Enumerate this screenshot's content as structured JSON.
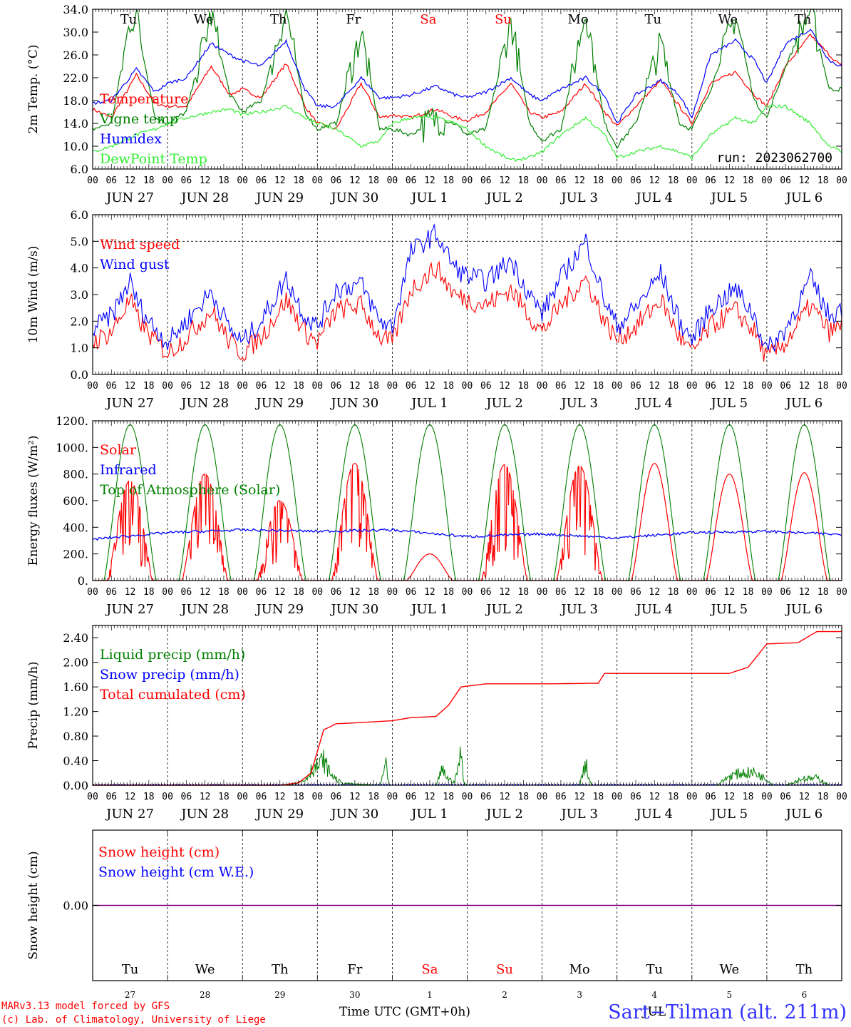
{
  "colors": {
    "red": "#ff0000",
    "green": "#008000",
    "blue": "#0000ff",
    "lightgreen": "#33ee33",
    "purple": "#800080",
    "axis": "#000000"
  },
  "days": {
    "names": [
      "Tu",
      "We",
      "Th",
      "Fr",
      "Sa",
      "Su",
      "Mo",
      "Tu",
      "We",
      "Th"
    ],
    "weekend": [
      false,
      false,
      false,
      false,
      true,
      true,
      false,
      false,
      false,
      false
    ],
    "dates": [
      "JUN 27",
      "JUN 28",
      "JUN 29",
      "JUN 30",
      "JUL  1",
      "JUL  2",
      "JUL  3",
      "JUL  4",
      "JUL  5",
      "JUL  6"
    ],
    "nums": [
      "27",
      "28",
      "29",
      "30",
      "1",
      "2",
      "3",
      "4",
      "5",
      "6"
    ],
    "hours": [
      "00",
      "06",
      "12",
      "18"
    ],
    "end_hour": "00"
  },
  "chart_data": [
    {
      "type": "line",
      "id": "temp",
      "ylabel": "2m Temp. (°C)",
      "ylim": [
        6,
        34
      ],
      "yticks": [
        "6.0",
        "10.0",
        "14.0",
        "18.0",
        "22.0",
        "26.0",
        "30.0",
        "34.0"
      ],
      "run_label": "run: 2023062700",
      "legend": [
        {
          "name": "Temperature",
          "color": "#ff0000"
        },
        {
          "name": "Vigne temp",
          "color": "#008000"
        },
        {
          "name": "Humidex",
          "color": "#0000ff"
        },
        {
          "name": "DewPoint Temp",
          "color": "#33ee33"
        }
      ],
      "series": [
        {
          "name": "Temperature",
          "color": "#ff0000",
          "x_hours": [
            0,
            6,
            14,
            20,
            24,
            30,
            38,
            44,
            48,
            54,
            62,
            68,
            72,
            78,
            86,
            92,
            96,
            102,
            110,
            116,
            120,
            126,
            134,
            140,
            144,
            150,
            158,
            164,
            168,
            174,
            182,
            188,
            192,
            198,
            206,
            212,
            216,
            222,
            230,
            236,
            240
          ],
          "values": [
            16.5,
            15,
            22.5,
            17.5,
            17,
            17,
            24,
            19,
            20,
            18.5,
            24.5,
            17,
            14,
            13,
            21,
            15,
            15.5,
            15,
            16.5,
            15,
            14.5,
            16,
            21,
            16,
            15,
            16,
            21,
            16,
            13.5,
            17,
            21.5,
            17,
            14,
            21,
            23,
            19,
            17,
            24,
            29.5,
            26,
            24
          ]
        },
        {
          "name": "Vigne temp",
          "color": "#008000",
          "x_hours": [
            0,
            6,
            12,
            14,
            20,
            24,
            30,
            38,
            44,
            48,
            54,
            62,
            68,
            72,
            78,
            86,
            92,
            96,
            102,
            110,
            116,
            120,
            126,
            134,
            140,
            144,
            150,
            158,
            164,
            168,
            174,
            182,
            188,
            192,
            198,
            206,
            212,
            216,
            222,
            230,
            236,
            240
          ],
          "values": [
            13,
            14,
            32,
            33,
            15,
            14,
            16,
            33,
            19,
            16,
            18,
            34,
            16,
            13,
            14,
            30,
            13,
            13,
            12,
            15,
            14,
            12,
            13,
            32,
            14,
            11,
            13,
            34,
            14,
            10,
            14,
            28,
            14,
            13,
            20,
            33,
            18,
            15,
            24,
            34,
            20,
            20
          ]
        },
        {
          "name": "Humidex",
          "color": "#0000ff",
          "x_hours": [
            0,
            6,
            14,
            20,
            24,
            30,
            38,
            44,
            48,
            54,
            62,
            68,
            72,
            78,
            86,
            92,
            96,
            102,
            110,
            116,
            120,
            126,
            134,
            140,
            144,
            150,
            158,
            164,
            168,
            174,
            182,
            188,
            192,
            198,
            206,
            212,
            216,
            222,
            230,
            236,
            240
          ],
          "values": [
            17.5,
            18,
            23.5,
            19.5,
            21,
            22,
            28,
            26,
            25,
            24,
            28.5,
            20,
            17,
            17,
            22,
            18.5,
            18.5,
            19,
            20.5,
            19,
            18.5,
            19.5,
            22,
            19,
            18,
            20,
            22,
            19,
            14,
            19,
            21.5,
            19,
            15,
            26,
            28.5,
            25,
            21,
            28,
            30.5,
            25,
            24
          ]
        },
        {
          "name": "DewPoint Temp",
          "color": "#33ee33",
          "x_hours": [
            0,
            6,
            14,
            20,
            24,
            30,
            38,
            44,
            48,
            54,
            62,
            68,
            72,
            78,
            86,
            92,
            96,
            102,
            110,
            116,
            120,
            126,
            134,
            140,
            144,
            150,
            158,
            164,
            168,
            174,
            182,
            188,
            192,
            198,
            206,
            212,
            216,
            222,
            230,
            236,
            240
          ],
          "values": [
            9,
            10,
            12,
            13,
            14,
            15,
            16,
            16.5,
            15.5,
            16,
            17,
            15,
            14,
            13,
            10,
            11,
            14,
            15,
            15,
            14,
            13,
            10,
            7.5,
            8,
            9,
            12,
            15,
            12,
            8,
            9,
            10,
            9,
            8,
            12,
            15,
            14,
            17,
            17,
            14,
            10,
            9
          ]
        }
      ]
    },
    {
      "type": "line",
      "id": "wind",
      "ylabel": "10m Wind (m/s)",
      "ylim": [
        0,
        6
      ],
      "yticks": [
        "0.0",
        "1.0",
        "2.0",
        "3.0",
        "4.0",
        "5.0",
        "6.0"
      ],
      "legend": [
        {
          "name": "Wind speed",
          "color": "#ff0000"
        },
        {
          "name": "Wind gust",
          "color": "#0000ff"
        }
      ],
      "series": [
        {
          "name": "Wind speed",
          "color": "#ff0000",
          "x_hours": [
            0,
            6,
            12,
            14,
            18,
            24,
            30,
            38,
            44,
            48,
            54,
            62,
            68,
            72,
            78,
            86,
            92,
            96,
            102,
            110,
            116,
            120,
            126,
            134,
            140,
            144,
            150,
            158,
            164,
            168,
            174,
            182,
            188,
            192,
            198,
            206,
            212,
            216,
            222,
            230,
            236,
            240
          ],
          "values": [
            1.2,
            1.6,
            2.8,
            2.2,
            1.5,
            0.8,
            1.4,
            2.4,
            1.2,
            0.8,
            1.4,
            2.8,
            1.6,
            1.2,
            2.4,
            2.6,
            1.4,
            1.2,
            3.2,
            4.0,
            3.0,
            2.8,
            2.6,
            3.2,
            2.2,
            1.6,
            2.6,
            3.6,
            2.0,
            1.3,
            1.8,
            2.8,
            1.4,
            0.8,
            1.8,
            2.4,
            1.6,
            0.6,
            1.2,
            2.6,
            1.6,
            1.8
          ]
        },
        {
          "name": "Wind gust",
          "color": "#0000ff",
          "x_hours": [
            0,
            6,
            12,
            14,
            18,
            24,
            30,
            38,
            44,
            48,
            54,
            62,
            68,
            72,
            78,
            86,
            92,
            96,
            102,
            110,
            116,
            120,
            126,
            134,
            140,
            144,
            150,
            158,
            164,
            168,
            174,
            182,
            188,
            192,
            198,
            206,
            212,
            216,
            222,
            230,
            236,
            240
          ],
          "values": [
            1.7,
            2.2,
            3.5,
            2.8,
            2.0,
            1.2,
            2.0,
            3.1,
            1.7,
            1.2,
            2.0,
            3.6,
            2.2,
            1.8,
            3.2,
            3.4,
            2.0,
            1.8,
            4.6,
            5.3,
            4.0,
            3.7,
            3.5,
            4.3,
            3.0,
            2.3,
            3.6,
            5.0,
            2.8,
            1.8,
            2.5,
            3.8,
            2.0,
            1.3,
            2.5,
            3.2,
            2.2,
            0.9,
            1.7,
            3.6,
            2.2,
            2.5
          ]
        }
      ]
    },
    {
      "type": "line",
      "id": "energy",
      "ylabel": "Energy fluxes (W/m²)",
      "ylim": [
        0,
        1200
      ],
      "yticks": [
        "0.",
        "200.",
        "400.",
        "600.",
        "800.",
        "1000.",
        "1200."
      ],
      "legend": [
        {
          "name": "Solar",
          "color": "#ff0000"
        },
        {
          "name": "Infrared",
          "color": "#0000ff"
        },
        {
          "name": "Top of Atmosphere (Solar)",
          "color": "#008000"
        }
      ],
      "toa_peak": 1170,
      "solar_peaks": [
        750,
        800,
        600,
        880,
        200,
        870,
        860,
        880,
        800,
        810
      ],
      "infrared_values": [
        310,
        360,
        380,
        370,
        380,
        330,
        350,
        320,
        360,
        370,
        345
      ]
    },
    {
      "type": "line",
      "id": "precip",
      "ylabel": "Precip (mm/h)",
      "ylim": [
        0,
        2.6
      ],
      "yticks": [
        "0.00",
        "0.40",
        "0.80",
        "1.20",
        "1.60",
        "2.00",
        "2.40"
      ],
      "legend": [
        {
          "name": "Liquid precip (mm/h)",
          "color": "#008000"
        },
        {
          "name": "Snow precip (mm/h)",
          "color": "#0000ff"
        },
        {
          "name": "Total cumulated (cm)",
          "color": "#ff0000"
        }
      ],
      "series": [
        {
          "name": "Total cumulated (cm)",
          "color": "#ff0000",
          "x_hours": [
            0,
            60,
            66,
            70,
            72,
            74,
            78,
            86,
            96,
            102,
            110,
            114,
            118,
            126,
            138,
            146,
            162,
            164,
            168,
            186,
            204,
            210,
            216,
            226,
            232,
            240
          ],
          "values": [
            0,
            0,
            0.04,
            0.2,
            0.55,
            0.9,
            1.0,
            1.02,
            1.05,
            1.1,
            1.12,
            1.3,
            1.6,
            1.65,
            1.65,
            1.65,
            1.66,
            1.82,
            1.82,
            1.82,
            1.82,
            1.92,
            2.3,
            2.32,
            2.5,
            2.5
          ]
        },
        {
          "name": "Liquid precip (mm/h)",
          "color": "#008000",
          "x_hours": [
            0,
            60,
            64,
            68,
            70,
            72,
            74,
            76,
            78,
            80,
            92,
            94,
            95,
            96,
            110,
            112,
            114,
            116,
            118,
            119,
            120,
            122,
            156,
            158,
            159,
            160,
            162,
            200,
            204,
            208,
            212,
            216,
            218,
            220,
            222,
            226,
            228,
            230,
            232,
            236,
            240
          ],
          "values": [
            0,
            0,
            0.02,
            0.08,
            0.25,
            0.3,
            0.4,
            0.2,
            0.1,
            0.03,
            0,
            0.3,
            0,
            0,
            0,
            0.25,
            0.1,
            0.05,
            0.5,
            0.05,
            0,
            0,
            0,
            0.4,
            0.1,
            0,
            0,
            0,
            0.15,
            0.2,
            0.2,
            0.1,
            0,
            0,
            0,
            0.08,
            0.12,
            0.1,
            0.12,
            0,
            0
          ]
        }
      ]
    },
    {
      "type": "line",
      "id": "snow",
      "ylabel": "Snow height (cm)",
      "ylim": [
        -1,
        1
      ],
      "yticks": [
        "0.00"
      ],
      "legend": [
        {
          "name": "Snow height (cm)",
          "color": "#ff0000"
        },
        {
          "name": "Snow height (cm W.E.)",
          "color": "#0000ff"
        }
      ],
      "series": [
        {
          "name": "Snow height (cm)",
          "color": "#800080",
          "x_hours": [
            0,
            240
          ],
          "values": [
            0,
            0
          ]
        }
      ]
    }
  ],
  "footer": {
    "xlabel": "Time UTC (GMT+0h)",
    "month_label": "JUL",
    "credit_1": "MARv3.13 model forced by GFS",
    "credit_2": "(c) Lab. of Climatology, University of Liege",
    "station": "Sart−Tilman (alt. 211m)"
  }
}
